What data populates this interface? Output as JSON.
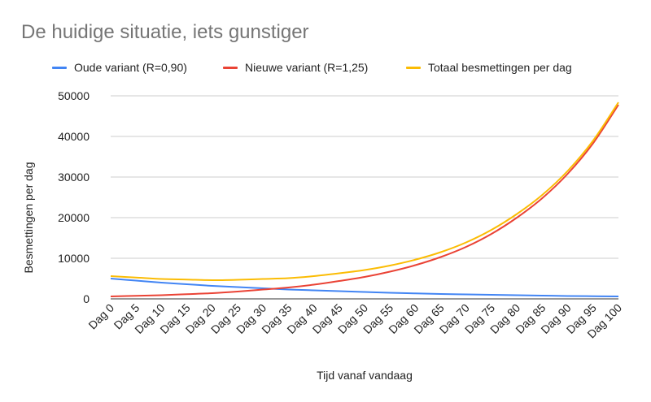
{
  "chart_data": {
    "type": "line",
    "title": "De huidige situatie, iets gunstiger",
    "xlabel": "Tijd vanaf vandaag",
    "ylabel": "Besmettingen per dag",
    "ylim": [
      0,
      50000
    ],
    "yticks": [
      0,
      10000,
      20000,
      30000,
      40000,
      50000
    ],
    "grid": true,
    "legend_position": "top",
    "categories": [
      "Dag 0",
      "Dag 5",
      "Dag 10",
      "Dag 15",
      "Dag 20",
      "Dag 25",
      "Dag 30",
      "Dag 35",
      "Dag 40",
      "Dag 45",
      "Dag 50",
      "Dag 55",
      "Dag 60",
      "Dag 65",
      "Dag 70",
      "Dag 75",
      "Dag 80",
      "Dag 85",
      "Dag 90",
      "Dag 95",
      "Dag 100"
    ],
    "series": [
      {
        "name": "Oude variant (R=0,90)",
        "color": "#4285f4",
        "values": [
          5000,
          4500,
          4000,
          3600,
          3200,
          2900,
          2600,
          2300,
          2100,
          1900,
          1700,
          1500,
          1350,
          1200,
          1100,
          1000,
          900,
          800,
          700,
          650,
          600
        ]
      },
      {
        "name": "Nieuwe variant (R=1,25)",
        "color": "#ea4335",
        "values": [
          600,
          750,
          900,
          1150,
          1400,
          1800,
          2300,
          2800,
          3500,
          4400,
          5400,
          6700,
          8300,
          10300,
          12800,
          16000,
          20000,
          24800,
          30800,
          38300,
          47800
        ]
      },
      {
        "name": "Totaal besmettingen per dag",
        "color": "#fbbc04",
        "values": [
          5600,
          5250,
          4900,
          4750,
          4600,
          4700,
          4900,
          5100,
          5600,
          6300,
          7100,
          8200,
          9650,
          11500,
          13900,
          17000,
          20900,
          25600,
          31500,
          38950,
          48400
        ]
      }
    ]
  }
}
